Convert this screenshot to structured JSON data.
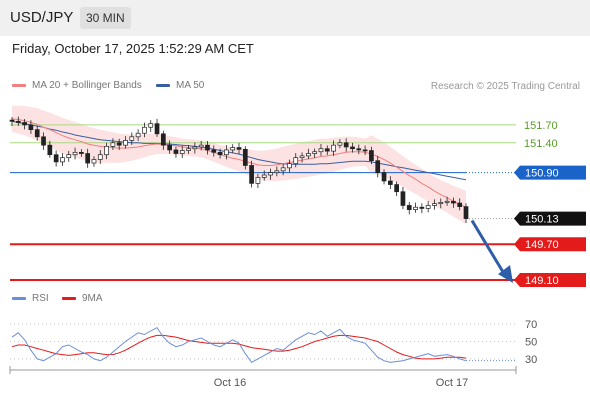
{
  "header": {
    "pair": "USD/JPY",
    "timeframe": "30 MIN"
  },
  "timestamp": "Friday, October 17, 2025 1:52:29 AM CET",
  "legend": {
    "ma20": "MA 20 + Bollinger Bands",
    "ma50": "MA 50",
    "credit": "Research © 2025 Trading Central"
  },
  "colors": {
    "ma20": "#f08080",
    "ma50": "#3a5fa0",
    "bands": "#fbd8d8",
    "resistance": "#a8d880",
    "pivot": "#1a63c9",
    "support": "#e31b1b",
    "arrow": "#2f5ea8",
    "rsi": "#6a8fd8",
    "rsi_ma": "#e31b1b"
  },
  "chart_data": [
    {
      "type": "candlestick",
      "ylim": [
        148.95,
        152.1
      ],
      "x_ticks": [
        "Oct 16",
        "Oct 17"
      ],
      "levels": [
        {
          "value": 151.7,
          "label": "151.70",
          "kind": "resistance"
        },
        {
          "value": 151.4,
          "label": "151.40",
          "kind": "resistance"
        },
        {
          "value": 150.9,
          "label": "150.90",
          "kind": "pivot"
        },
        {
          "value": 150.13,
          "label": "150.13",
          "kind": "last"
        },
        {
          "value": 149.7,
          "label": "149.70",
          "kind": "support"
        },
        {
          "value": 149.1,
          "label": "149.10",
          "kind": "support"
        }
      ],
      "close": [
        151.76,
        151.74,
        151.7,
        151.62,
        151.5,
        151.36,
        151.2,
        151.08,
        151.15,
        151.2,
        151.24,
        151.22,
        151.06,
        151.12,
        151.2,
        151.34,
        151.4,
        151.36,
        151.44,
        151.5,
        151.56,
        151.66,
        151.72,
        151.55,
        151.36,
        151.28,
        151.22,
        151.27,
        151.3,
        151.33,
        151.36,
        151.28,
        151.24,
        151.2,
        151.28,
        151.32,
        151.29,
        151.02,
        150.72,
        150.82,
        150.86,
        150.9,
        150.93,
        150.98,
        151.05,
        151.15,
        151.18,
        151.22,
        151.25,
        151.3,
        151.26,
        151.36,
        151.4,
        151.33,
        151.3,
        151.28,
        151.27,
        151.1,
        150.9,
        150.76,
        150.7,
        150.58,
        150.35,
        150.28,
        150.32,
        150.3,
        150.35,
        150.38,
        150.4,
        150.42,
        150.39,
        150.33,
        150.13
      ],
      "ma20": [
        151.8,
        151.79,
        151.77,
        151.74,
        151.71,
        151.66,
        151.62,
        151.57,
        151.52,
        151.48,
        151.45,
        151.42,
        151.38,
        151.36,
        151.34,
        151.33,
        151.32,
        151.31,
        151.31,
        151.32,
        151.33,
        151.35,
        151.37,
        151.38,
        151.37,
        151.36,
        151.35,
        151.33,
        151.32,
        151.31,
        151.3,
        151.27,
        151.24,
        151.2,
        151.17,
        151.14,
        151.12,
        151.09,
        151.06,
        151.03,
        151.02,
        151.02,
        151.03,
        151.05,
        151.07,
        151.09,
        151.11,
        151.13,
        151.15,
        151.17,
        151.18,
        151.2,
        151.22,
        151.24,
        151.25,
        151.25,
        151.24,
        151.21,
        151.17,
        151.12,
        151.06,
        150.99,
        150.92,
        150.85,
        150.79,
        150.72,
        150.66,
        150.59,
        150.53,
        150.48,
        150.42,
        150.37,
        150.32
      ],
      "ma50": [
        151.76,
        151.74,
        151.72,
        151.7,
        151.68,
        151.66,
        151.63,
        151.61,
        151.58,
        151.56,
        151.53,
        151.51,
        151.49,
        151.47,
        151.45,
        151.44,
        151.43,
        151.42,
        151.41,
        151.4,
        151.4,
        151.39,
        151.39,
        151.39,
        151.38,
        151.38,
        151.37,
        151.36,
        151.35,
        151.34,
        151.33,
        151.31,
        151.29,
        151.27,
        151.25,
        151.23,
        151.21,
        151.18,
        151.15,
        151.12,
        151.1,
        151.08,
        151.06,
        151.05,
        151.04,
        151.04,
        151.04,
        151.04,
        151.04,
        151.05,
        151.05,
        151.06,
        151.07,
        151.08,
        151.09,
        151.09,
        151.09,
        151.08,
        151.06,
        151.04,
        151.02,
        151.0,
        150.98,
        150.96,
        150.94,
        150.92,
        150.9,
        150.88,
        150.86,
        150.84,
        150.82,
        150.8,
        150.78
      ]
    },
    {
      "type": "line",
      "ylim": [
        15,
        85
      ],
      "y_ticks": [
        70,
        50,
        30
      ],
      "legend": [
        "RSI",
        "9MA"
      ],
      "rsi": [
        55,
        60,
        52,
        40,
        30,
        28,
        32,
        36,
        44,
        46,
        42,
        38,
        35,
        30,
        28,
        32,
        38,
        44,
        50,
        55,
        60,
        58,
        62,
        66,
        55,
        48,
        44,
        46,
        50,
        52,
        54,
        50,
        46,
        44,
        48,
        52,
        48,
        36,
        26,
        30,
        34,
        38,
        42,
        40,
        46,
        52,
        56,
        60,
        58,
        62,
        56,
        60,
        64,
        56,
        52,
        50,
        48,
        40,
        32,
        28,
        26,
        27,
        28,
        30,
        32,
        34,
        36,
        33,
        34,
        35,
        33,
        30,
        28
      ],
      "ma9": [
        44,
        46,
        46,
        44,
        42,
        40,
        38,
        36,
        35,
        34,
        35,
        36,
        37,
        37,
        36,
        35,
        35,
        37,
        40,
        44,
        48,
        52,
        55,
        57,
        57,
        56,
        55,
        53,
        51,
        50,
        49,
        48,
        48,
        48,
        48,
        48,
        47,
        45,
        43,
        42,
        41,
        40,
        39,
        39,
        40,
        42,
        44,
        47,
        50,
        52,
        54,
        56,
        57,
        57,
        56,
        55,
        54,
        52,
        50,
        46,
        42,
        38,
        35,
        33,
        31,
        30,
        30,
        30,
        31,
        32,
        32,
        32,
        31
      ]
    }
  ]
}
